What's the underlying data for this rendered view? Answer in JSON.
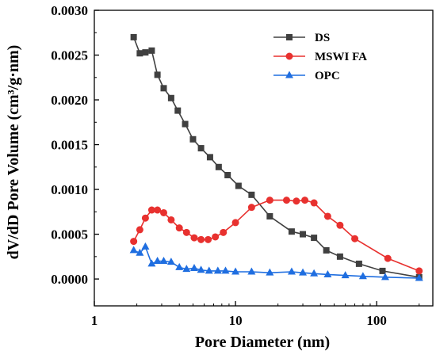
{
  "chart_data": {
    "type": "line",
    "xlabel": "Pore Diameter (nm)",
    "ylabel": "dV/dD Pore Volume (cm³/g·nm)",
    "xscale": "log",
    "xlim": [
      1,
      250
    ],
    "ylim": [
      -0.0003,
      0.003
    ],
    "xticks": [
      1,
      10,
      100
    ],
    "xtick_labels": [
      "1",
      "10",
      "100"
    ],
    "yticks": [
      0.0,
      0.0005,
      0.001,
      0.0015,
      0.002,
      0.0025,
      0.003
    ],
    "ytick_labels": [
      "0.0000",
      "0.0005",
      "0.0010",
      "0.0015",
      "0.0020",
      "0.0025",
      "0.0030"
    ],
    "grid": false,
    "legend_position": "top-right",
    "series": [
      {
        "name": "DS",
        "color": "#404040",
        "marker": "square",
        "x": [
          1.9,
          2.1,
          2.3,
          2.55,
          2.8,
          3.1,
          3.5,
          3.9,
          4.4,
          5.0,
          5.7,
          6.6,
          7.6,
          8.8,
          10.5,
          13,
          17.5,
          25,
          30,
          36,
          44,
          55,
          75,
          110,
          200
        ],
        "y": [
          0.0027,
          0.00252,
          0.00253,
          0.00255,
          0.00228,
          0.00213,
          0.00202,
          0.00188,
          0.00173,
          0.00156,
          0.00146,
          0.00136,
          0.00125,
          0.00116,
          0.00104,
          0.00094,
          0.0007,
          0.00053,
          0.0005,
          0.00046,
          0.00032,
          0.00025,
          0.00017,
          9e-05,
          2e-05
        ]
      },
      {
        "name": "MSWI FA",
        "color": "#e8312f",
        "marker": "circle",
        "x": [
          1.9,
          2.1,
          2.3,
          2.55,
          2.8,
          3.1,
          3.5,
          4.0,
          4.5,
          5.1,
          5.7,
          6.4,
          7.2,
          8.2,
          10.0,
          13.0,
          17.5,
          23.0,
          27.0,
          31.0,
          36.0,
          45.0,
          55.0,
          70.0,
          120.0,
          200.0
        ],
        "y": [
          0.00042,
          0.00055,
          0.00068,
          0.00077,
          0.00077,
          0.00074,
          0.00066,
          0.00057,
          0.00052,
          0.00046,
          0.00044,
          0.00044,
          0.00047,
          0.00052,
          0.00063,
          0.0008,
          0.00088,
          0.00088,
          0.00087,
          0.00088,
          0.00085,
          0.0007,
          0.0006,
          0.00045,
          0.00023,
          9e-05
        ]
      },
      {
        "name": "OPC",
        "color": "#1f6ee0",
        "marker": "triangle",
        "x": [
          1.9,
          2.1,
          2.3,
          2.55,
          2.8,
          3.1,
          3.5,
          4.0,
          4.5,
          5.1,
          5.7,
          6.5,
          7.5,
          8.5,
          10.0,
          13.0,
          17.5,
          25.0,
          30.0,
          36.0,
          45.0,
          60.0,
          80.0,
          115.0,
          200.0
        ],
        "y": [
          0.00032,
          0.00029,
          0.00036,
          0.00017,
          0.0002,
          0.0002,
          0.00019,
          0.00013,
          0.00011,
          0.00012,
          0.0001,
          9e-05,
          9e-05,
          9e-05,
          8e-05,
          8e-05,
          7e-05,
          8e-05,
          7e-05,
          6e-05,
          5e-05,
          4e-05,
          3e-05,
          2e-05,
          1e-05
        ]
      }
    ]
  }
}
